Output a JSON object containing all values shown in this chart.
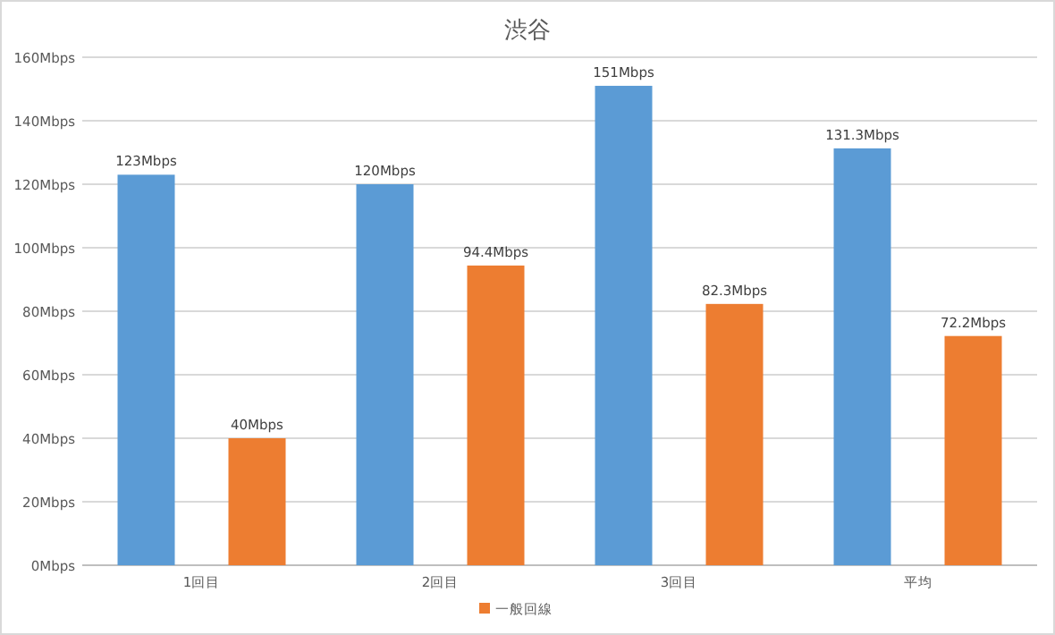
{
  "chart_data": {
    "type": "bar",
    "title": "渋谷",
    "categories": [
      "1回目",
      "2回目",
      "3回目",
      "平均"
    ],
    "series": [
      {
        "color": "#5b9bd5",
        "values": [
          123,
          120,
          151,
          131.3
        ],
        "value_labels": [
          "123Mbps",
          "120Mbps",
          "151Mbps",
          "131.3Mbps"
        ]
      },
      {
        "name": "一般回線",
        "color": "#ed7d31",
        "values": [
          40,
          94.4,
          82.3,
          72.2
        ],
        "value_labels": [
          "40Mbps",
          "94.4Mbps",
          "82.3Mbps",
          "72.2Mbps"
        ]
      }
    ],
    "ylim": [
      0,
      160
    ],
    "yticks": [
      {
        "value": 0,
        "label": "0Mbps"
      },
      {
        "value": 20,
        "label": "20Mbps"
      },
      {
        "value": 40,
        "label": "40Mbps"
      },
      {
        "value": 60,
        "label": "60Mbps"
      },
      {
        "value": 80,
        "label": "80Mbps"
      },
      {
        "value": 100,
        "label": "100Mbps"
      },
      {
        "value": 120,
        "label": "120Mbps"
      },
      {
        "value": 140,
        "label": "140Mbps"
      },
      {
        "value": 160,
        "label": "160Mbps"
      }
    ],
    "grid": "y",
    "legend": "bottom"
  }
}
